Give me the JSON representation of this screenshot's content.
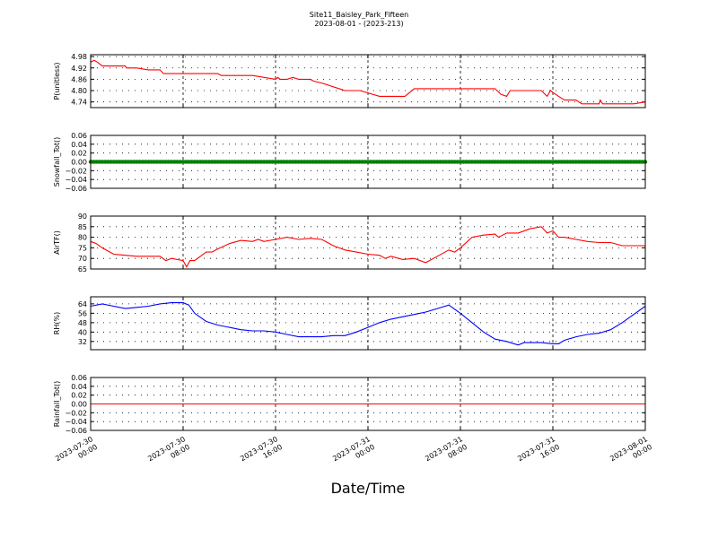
{
  "chart_data": {
    "title": "Site11_Baisley_Park_Fifteen",
    "subtitle": "2023-08-01 - (2023-213)",
    "xlabel": "Date/Time",
    "type": "line",
    "grid": true,
    "x_ticks": [
      [
        "2023-07-30",
        "00:00"
      ],
      [
        "2023-07-30",
        "08:00"
      ],
      [
        "2023-07-30",
        "16:00"
      ],
      [
        "2023-07-31",
        "00:00"
      ],
      [
        "2023-07-31",
        "08:00"
      ],
      [
        "2023-07-31",
        "16:00"
      ],
      [
        "2023-08-01",
        "00:00"
      ]
    ],
    "x_hours_range": [
      0,
      48
    ],
    "panels": [
      {
        "ylabel": "P(unitless)",
        "color": "#ff0000",
        "ylim": [
          4.71,
          4.99
        ],
        "yticks": [
          "4.98",
          "4.92",
          "4.86",
          "4.80",
          "4.74"
        ],
        "ytick_values": [
          4.98,
          4.92,
          4.86,
          4.8,
          4.74
        ],
        "series": {
          "x_hours": [
            0,
            0.3,
            0.6,
            1,
            2,
            3,
            3.1,
            4,
            5,
            6,
            6.3,
            7,
            10,
            11,
            11.3,
            12,
            14,
            16,
            16.2,
            16.4,
            16.7,
            17,
            17.5,
            18,
            18.5,
            19,
            19.3,
            20,
            22,
            23,
            23.3,
            25,
            27,
            27.2,
            28,
            30,
            31,
            32,
            34,
            35,
            35.5,
            36,
            36.3,
            38,
            39,
            39.5,
            39.8,
            40,
            40.5,
            41,
            42,
            42.5,
            43.5,
            44,
            44.1,
            44.3,
            44.5,
            46,
            47,
            48
          ],
          "values": [
            4.95,
            4.96,
            4.95,
            4.93,
            4.93,
            4.93,
            4.92,
            4.92,
            4.91,
            4.91,
            4.89,
            4.89,
            4.89,
            4.89,
            4.88,
            4.88,
            4.88,
            4.86,
            4.87,
            4.86,
            4.86,
            4.86,
            4.87,
            4.86,
            4.86,
            4.86,
            4.85,
            4.84,
            4.8,
            4.8,
            4.8,
            4.77,
            4.77,
            4.77,
            4.81,
            4.81,
            4.81,
            4.81,
            4.81,
            4.81,
            4.78,
            4.77,
            4.8,
            4.8,
            4.8,
            4.77,
            4.8,
            4.79,
            4.77,
            4.75,
            4.75,
            4.73,
            4.73,
            4.73,
            4.75,
            4.73,
            4.73,
            4.73,
            4.73,
            4.74
          ]
        }
      },
      {
        "ylabel": "Snowfall_Tot()",
        "color": "#008000",
        "ylim": [
          -0.06,
          0.06
        ],
        "yticks": [
          "0.06",
          "0.04",
          "0.02",
          "0.00",
          "−0.02",
          "−0.04",
          "−0.06"
        ],
        "ytick_values": [
          0.06,
          0.04,
          0.02,
          0.0,
          -0.02,
          -0.04,
          -0.06
        ],
        "series": {
          "x_hours": [
            0,
            48
          ],
          "values": [
            0,
            0
          ],
          "markers": true
        }
      },
      {
        "ylabel": "AirTF()",
        "color": "#ff0000",
        "ylim": [
          65,
          90
        ],
        "yticks": [
          "90",
          "85",
          "80",
          "75",
          "70",
          "65"
        ],
        "ytick_values": [
          90,
          85,
          80,
          75,
          70,
          65
        ],
        "series": {
          "x_hours": [
            0,
            0.5,
            1,
            2,
            3,
            4,
            5,
            6,
            6.5,
            7,
            8,
            8.3,
            8.6,
            9,
            10,
            10.5,
            11,
            12,
            13,
            14,
            14.5,
            15,
            16,
            17,
            18,
            19,
            20,
            21,
            22,
            23,
            24,
            25,
            25.5,
            26,
            27,
            28,
            29,
            30,
            31,
            31.5,
            32,
            33,
            34,
            35,
            35.3,
            36,
            37,
            38,
            39,
            39.5,
            40,
            40.5,
            41,
            42,
            43,
            44,
            45,
            46,
            47,
            48
          ],
          "values": [
            78,
            77,
            75,
            72,
            71.5,
            71,
            71,
            71,
            69,
            70,
            69,
            66,
            69,
            69,
            73,
            73,
            74.5,
            77,
            78.5,
            78,
            79,
            78,
            79,
            80,
            79,
            79.5,
            79,
            76,
            74,
            73,
            72,
            71.5,
            70,
            71,
            69.5,
            70,
            68,
            71,
            74,
            73,
            75,
            80,
            81,
            81.5,
            80,
            82,
            82,
            84,
            85,
            82,
            83,
            80,
            80,
            79,
            78,
            77.5,
            77.5,
            76,
            76,
            76
          ]
        }
      },
      {
        "ylabel": "RH(%)",
        "color": "#0000ff",
        "ylim": [
          25,
          70
        ],
        "yticks": [
          "64",
          "56",
          "48",
          "40",
          "32"
        ],
        "ytick_values": [
          64,
          56,
          48,
          40,
          32
        ],
        "series": {
          "x_hours": [
            0,
            1,
            2,
            3,
            4,
            5,
            6,
            7,
            8,
            8.5,
            9,
            10,
            11,
            12,
            13,
            14,
            15,
            16,
            17,
            18,
            19,
            20,
            21,
            22,
            23,
            24,
            25,
            26,
            27,
            28,
            29,
            30,
            31,
            32,
            33,
            34,
            35,
            36,
            37,
            37.5,
            38,
            39,
            40,
            40.5,
            41,
            42,
            43,
            44,
            45,
            46,
            47,
            48
          ],
          "values": [
            62,
            64,
            62,
            60,
            61,
            62,
            64,
            65,
            65,
            63,
            56,
            49,
            46,
            44,
            42,
            41,
            41,
            40,
            38,
            36,
            36,
            36,
            37,
            37,
            40,
            44,
            48,
            51,
            53,
            55,
            57,
            60,
            63,
            56,
            48,
            40,
            34,
            32,
            29,
            31,
            31,
            31,
            30,
            30,
            33,
            36,
            38,
            39,
            42,
            48,
            55,
            62
          ]
        }
      },
      {
        "ylabel": "Rainfall_Tot()",
        "color": "#ff0000",
        "ylim": [
          -0.06,
          0.06
        ],
        "yticks": [
          "0.06",
          "0.04",
          "0.02",
          "0.00",
          "−0.02",
          "−0.04",
          "−0.06"
        ],
        "ytick_values": [
          0.06,
          0.04,
          0.02,
          0.0,
          -0.02,
          -0.04,
          -0.06
        ],
        "series": {
          "x_hours": [
            0,
            48
          ],
          "values": [
            0,
            0
          ]
        }
      }
    ]
  }
}
